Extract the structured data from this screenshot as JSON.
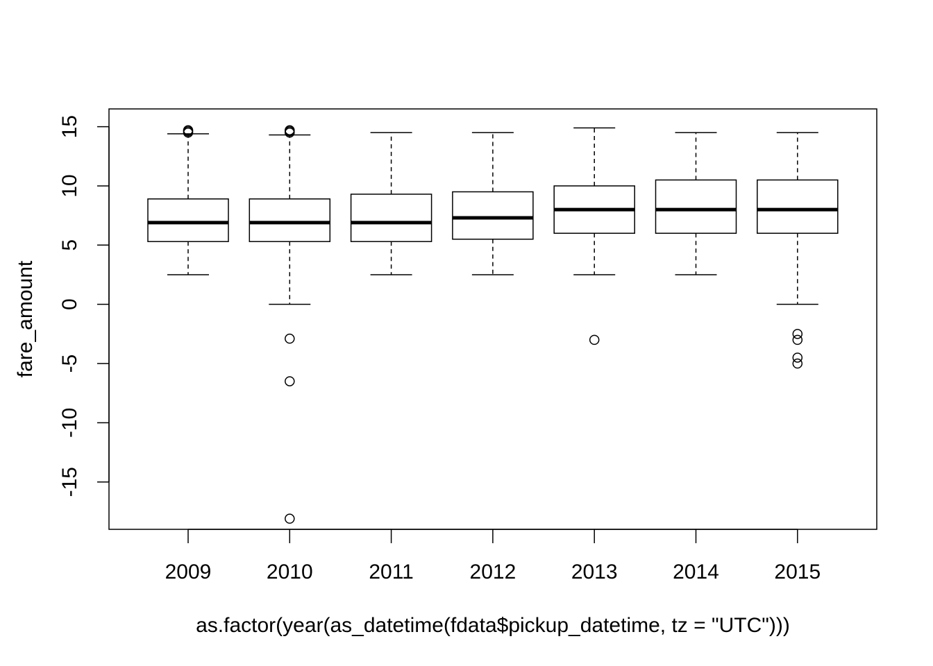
{
  "chart_data": {
    "type": "boxplot",
    "xlabel": "as.factor(year(as_datetime(fdata$pickup_datetime, tz = \"UTC\")))",
    "ylabel": "fare_amount",
    "ylim": [
      -19,
      16.5
    ],
    "yticks": [
      -15,
      -10,
      -5,
      0,
      5,
      10,
      15
    ],
    "categories": [
      "2009",
      "2010",
      "2011",
      "2012",
      "2013",
      "2014",
      "2015"
    ],
    "boxes": [
      {
        "category": "2009",
        "whisker_low": 2.5,
        "q1": 5.3,
        "median": 6.9,
        "q3": 8.9,
        "whisker_high": 14.4,
        "outliers": [
          14.5,
          14.6,
          14.7
        ]
      },
      {
        "category": "2010",
        "whisker_low": 0.0,
        "q1": 5.3,
        "median": 6.9,
        "q3": 8.9,
        "whisker_high": 14.3,
        "outliers": [
          14.5,
          14.6,
          14.7,
          -2.9,
          -6.5,
          -18.1
        ]
      },
      {
        "category": "2011",
        "whisker_low": 2.5,
        "q1": 5.3,
        "median": 6.9,
        "q3": 9.3,
        "whisker_high": 14.5,
        "outliers": []
      },
      {
        "category": "2012",
        "whisker_low": 2.5,
        "q1": 5.5,
        "median": 7.3,
        "q3": 9.5,
        "whisker_high": 14.5,
        "outliers": []
      },
      {
        "category": "2013",
        "whisker_low": 2.5,
        "q1": 6.0,
        "median": 8.0,
        "q3": 10.0,
        "whisker_high": 14.9,
        "outliers": [
          -3.0
        ]
      },
      {
        "category": "2014",
        "whisker_low": 2.5,
        "q1": 6.0,
        "median": 8.0,
        "q3": 10.5,
        "whisker_high": 14.5,
        "outliers": []
      },
      {
        "category": "2015",
        "whisker_low": 0.0,
        "q1": 6.0,
        "median": 8.0,
        "q3": 10.5,
        "whisker_high": 14.5,
        "outliers": [
          -2.5,
          -3.0,
          -4.5,
          -5.0
        ]
      }
    ],
    "grid": false,
    "legend": "none"
  }
}
